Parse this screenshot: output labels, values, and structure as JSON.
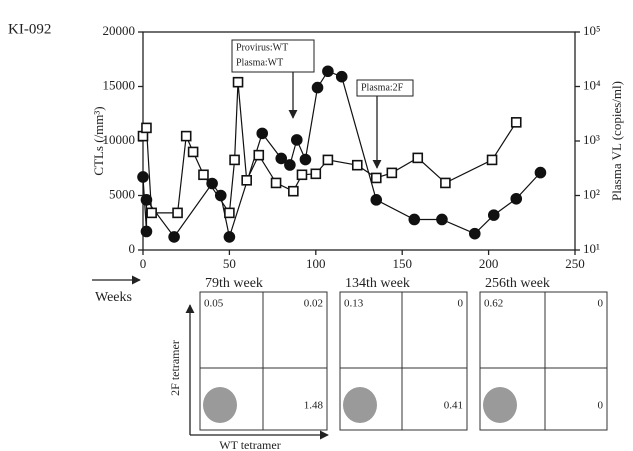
{
  "chart_data": {
    "type": "line",
    "annotations": [
      "KI-092",
      "Provirus:WT",
      "Plasma:WT",
      "Plasma:2F",
      "Weeks"
    ],
    "y_label": "CTLs (/mm³)",
    "y2_label": "Plasma VL (copies/ml)",
    "xlim": [
      0,
      250
    ],
    "xticks": [
      0,
      50,
      100,
      150,
      200,
      250
    ],
    "ylim": [
      0,
      20000
    ],
    "yticks": [
      0,
      5000,
      10000,
      15000,
      20000
    ],
    "y2lim": [
      10,
      100000
    ],
    "y2_log": true,
    "y2ticks": [
      {
        "value": 10,
        "label": "10¹"
      },
      {
        "value": 100,
        "label": "10²"
      },
      {
        "value": 1000,
        "label": "10³"
      },
      {
        "value": 10000,
        "label": "10⁴"
      },
      {
        "value": 100000,
        "label": "10⁵"
      }
    ],
    "series": [
      {
        "color": "#111111",
        "marker": "circle",
        "filled": true,
        "x": [
          0,
          2,
          2,
          18,
          40,
          45,
          50,
          69,
          80,
          85,
          89,
          94,
          101,
          107,
          115,
          135,
          157,
          173,
          192,
          203,
          216,
          230
        ],
        "values": [
          6700,
          1700,
          4600,
          1200,
          6100,
          5000,
          1200,
          10700,
          8400,
          7800,
          10100,
          8300,
          14900,
          16400,
          15900,
          4600,
          2800,
          2800,
          1500,
          3200,
          4700,
          7100
        ]
      },
      {
        "color": "#111111",
        "marker": "square",
        "filled": false,
        "axis": "y2",
        "x": [
          0,
          2,
          5,
          20,
          25,
          29,
          35,
          50,
          53,
          55,
          60,
          67,
          77,
          87,
          92,
          100,
          107,
          124,
          135,
          144,
          159,
          175,
          202,
          216
        ],
        "values": [
          1230,
          1740,
          48,
          48,
          1230,
          630,
          240,
          48,
          450,
          12000,
          190,
          550,
          170,
          120,
          240,
          250,
          450,
          360,
          210,
          260,
          490,
          170,
          450,
          2200
        ]
      }
    ]
  },
  "flow_axes": {
    "y": "2F tetramer",
    "x": "WT tetramer"
  },
  "flow_panels": [
    {
      "title": "79th week",
      "upper_left": 0.05,
      "upper_right": 0.02,
      "lower_right": 1.48
    },
    {
      "title": "134th week",
      "upper_left": 0.13,
      "upper_right": 0,
      "lower_right": 0.41
    },
    {
      "title": "256th week",
      "upper_left": 0.62,
      "upper_right": 0,
      "lower_right": 0
    }
  ]
}
